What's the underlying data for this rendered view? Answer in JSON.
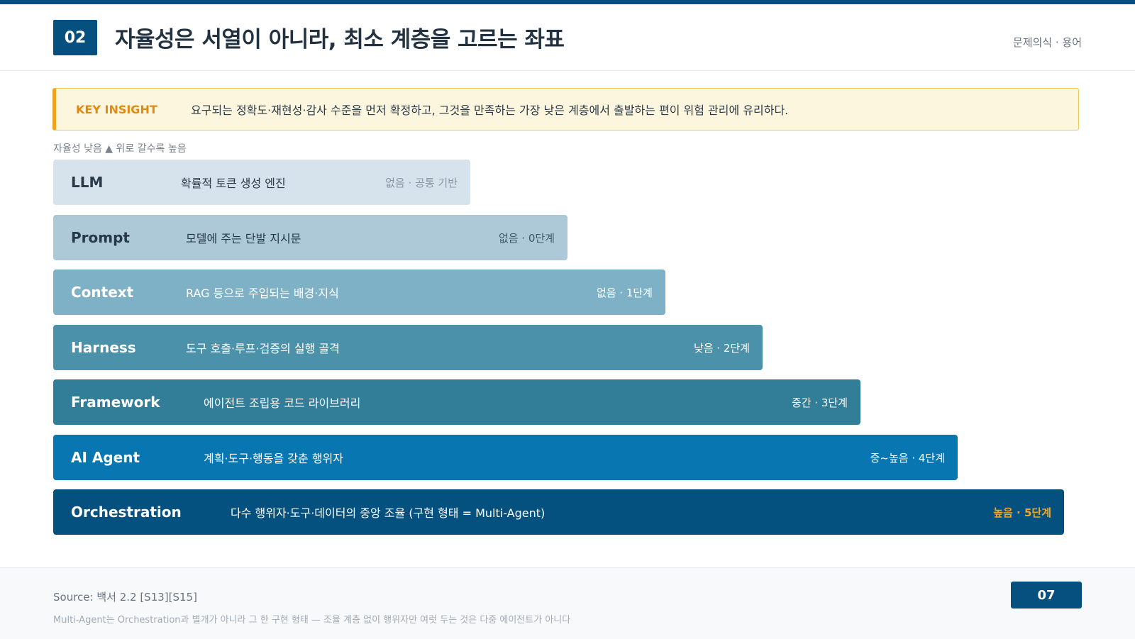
{
  "header": {
    "section_number": "02",
    "title": "자율성은 서열이 아니라, 최소 계층을 고르는 좌표",
    "category": "문제의식 · 용어"
  },
  "insight": {
    "label": "KEY INSIGHT",
    "text": "요구되는 정확도·재현성·감사 수준을 먼저 확정하고, 그것을 만족하는 가장 낮은 계층에서 출발하는 편이 위험 관리에 유리하다."
  },
  "axis_hint": "자율성 낮음 ▲ 위로 갈수록 높음",
  "layers": [
    {
      "name": "LLM",
      "description": "확률적 토큰 생성 엔진",
      "level": "없음 · 공통 기반",
      "color": "#d6e3ec",
      "text_color": "#2a3a48",
      "level_color": "#8a97a3"
    },
    {
      "name": "Prompt",
      "description": "모델에 주는 단발 지시문",
      "level": "없음 · 0단계",
      "color": "#adc9d8",
      "text_color": "#25394a",
      "level_color": "#3f5566"
    },
    {
      "name": "Context",
      "description": "RAG 등으로 주입되는 배경·지식",
      "level": "없음 · 1단계",
      "color": "#7fb1c6",
      "text_color": "#ffffff",
      "level_color": "#ffffff"
    },
    {
      "name": "Harness",
      "description": "도구 호출·루프·검증의 실행 골격",
      "level": "낮음 · 2단계",
      "color": "#4b91a9",
      "text_color": "#ffffff",
      "level_color": "#ffffff"
    },
    {
      "name": "Framework",
      "description": "에이전트 조립용 코드 라이브러리",
      "level": "중간 · 3단계",
      "color": "#327d98",
      "text_color": "#ffffff",
      "level_color": "#ffffff"
    },
    {
      "name": "AI Agent",
      "description": "계획·도구·행동을 갖춘 행위자",
      "level": "중~높음 · 4단계",
      "color": "#0876b0",
      "text_color": "#ffffff",
      "level_color": "#ffffff"
    },
    {
      "name": "Orchestration",
      "description": "다수 행위자·도구·데이터의 중앙 조율 (구현 형태 = Multi-Agent)",
      "level": "높음 · 5단계",
      "color": "#04507f",
      "text_color": "#ffffff",
      "level_color": "#f5a623"
    }
  ],
  "footer": {
    "source": "Source: 백서 2.2 [S13][S15]",
    "footnote": "Multi-Agent는 Orchestration과 별개가 아니라 그 한 구현 형태 — 조율 계층 없이 행위자만 여럿 두는 것은 다중 에이전트가 아니다",
    "page_number": "07"
  }
}
